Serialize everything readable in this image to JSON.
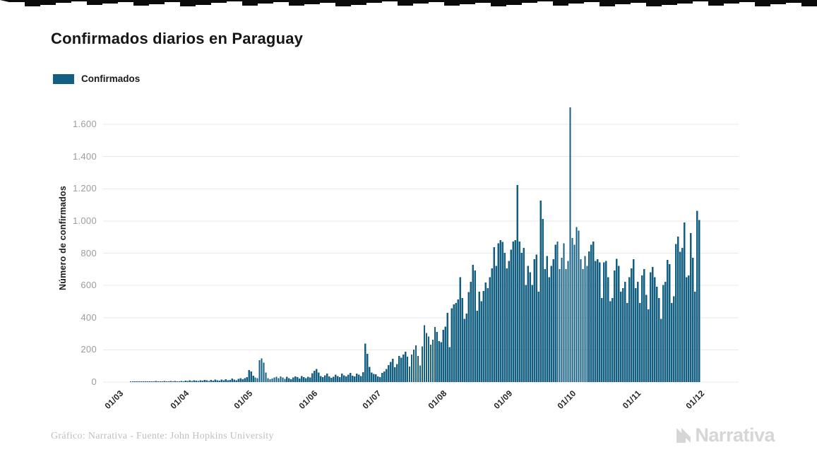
{
  "page": {
    "background_color": "#ffffff"
  },
  "header": {
    "title": "Confirmados diarios en Paraguay"
  },
  "legend": {
    "label": "Confirmados",
    "swatch_color": "#135f82"
  },
  "chart_data": {
    "type": "bar",
    "title": "Confirmados diarios en Paraguay",
    "series_name": "Confirmados",
    "xlabel": "",
    "ylabel": "Número de confirmados",
    "bar_color": "#135f82",
    "grid": true,
    "gridline_color": "#e9e9e9",
    "ylim": [
      0,
      1600
    ],
    "ytick_values": [
      0,
      200,
      400,
      600,
      800,
      1000,
      1200,
      1400,
      1600
    ],
    "ytick_labels": [
      "0",
      "200",
      "400",
      "600",
      "800",
      "1.000",
      "1.200",
      "1.400",
      "1.600"
    ],
    "xticks": [
      {
        "label": "01/03",
        "day_index": 0
      },
      {
        "label": "01/04",
        "day_index": 31
      },
      {
        "label": "01/05",
        "day_index": 61
      },
      {
        "label": "01/06",
        "day_index": 92
      },
      {
        "label": "01/07",
        "day_index": 122
      },
      {
        "label": "01/08",
        "day_index": 153
      },
      {
        "label": "01/09",
        "day_index": 184
      },
      {
        "label": "01/10",
        "day_index": 214
      },
      {
        "label": "01/11",
        "day_index": 245
      },
      {
        "label": "01/12",
        "day_index": 275
      }
    ],
    "values": [
      0,
      0,
      0,
      0,
      0,
      0,
      1,
      2,
      1,
      2,
      3,
      2,
      4,
      3,
      2,
      5,
      4,
      3,
      6,
      4,
      5,
      3,
      6,
      4,
      5,
      7,
      4,
      6,
      5,
      4,
      6,
      5,
      8,
      6,
      10,
      7,
      12,
      9,
      6,
      11,
      8,
      14,
      10,
      7,
      13,
      9,
      16,
      11,
      8,
      15,
      12,
      18,
      10,
      14,
      22,
      16,
      12,
      20,
      25,
      18,
      24,
      30,
      75,
      65,
      40,
      28,
      25,
      135,
      146,
      120,
      60,
      25,
      18,
      22,
      28,
      32,
      24,
      35,
      28,
      20,
      32,
      25,
      18,
      28,
      35,
      30,
      22,
      38,
      30,
      25,
      32,
      28,
      55,
      70,
      82,
      60,
      38,
      30,
      42,
      52,
      36,
      26,
      32,
      46,
      38,
      30,
      52,
      42,
      34,
      46,
      56,
      40,
      36,
      52,
      46,
      38,
      62,
      240,
      175,
      95,
      60,
      50,
      48,
      36,
      30,
      56,
      66,
      82,
      105,
      125,
      145,
      92,
      112,
      162,
      152,
      172,
      188,
      158,
      96,
      172,
      202,
      228,
      162,
      102,
      222,
      352,
      305,
      282,
      232,
      262,
      342,
      312,
      255,
      248,
      325,
      345,
      430,
      218,
      458,
      482,
      492,
      512,
      650,
      522,
      392,
      425,
      558,
      622,
      728,
      692,
      442,
      562,
      502,
      565,
      618,
      582,
      652,
      705,
      838,
      722,
      862,
      882,
      870,
      802,
      705,
      752,
      822,
      872,
      882,
      1223,
      872,
      802,
      832,
      602,
      722,
      682,
      602,
      762,
      792,
      562,
      1127,
      1013,
      702,
      782,
      652,
      722,
      762,
      852,
      872,
      702,
      772,
      862,
      702,
      752,
      1705,
      895,
      852,
      962,
      940,
      762,
      702,
      782,
      722,
      812,
      852,
      872,
      752,
      762,
      742,
      522,
      742,
      752,
      652,
      502,
      522,
      692,
      765,
      722,
      562,
      582,
      622,
      492,
      652,
      705,
      762,
      582,
      622,
      492,
      662,
      702,
      542,
      452,
      682,
      715,
      652,
      592,
      522,
      392,
      602,
      622,
      758,
      732,
      492,
      532,
      857,
      902,
      808,
      832,
      991,
      652,
      662,
      925,
      772,
      562,
      1062,
      1005
    ]
  },
  "footer": {
    "credit": "Gráfico: Narrativa - Fuente: John Hopkins University"
  },
  "branding": {
    "logo_text": "Narrativa"
  }
}
